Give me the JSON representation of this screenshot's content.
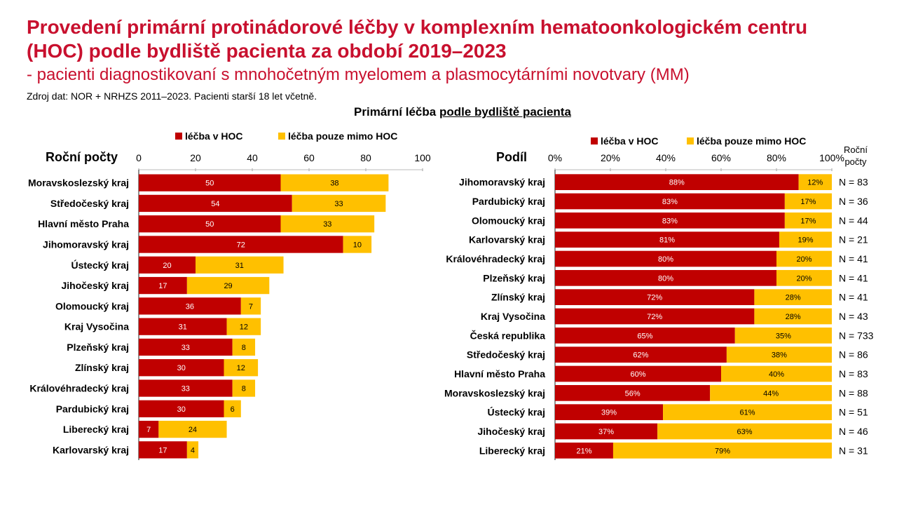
{
  "title_line1": "Provedení primární protinádorové léčby v komplexním hematoonkologickém centru",
  "title_line2": "(HOC) podle bydliště pacienta za období 2019–2023",
  "subtitle": "- pacienti diagnostikovaní s mnohočetným myelomem a plasmocytárními novotvary (MM)",
  "source": "Zdroj dat: NOR + NRHZS 2011–2023. Pacienti starší 18 let včetně.",
  "section_title_plain": "Primární léčba ",
  "section_title_underlined": "podle bydliště pacienta",
  "colors": {
    "hoc": "#c00000",
    "outside": "#ffc000",
    "title": "#c8102e"
  },
  "chart_data": [
    {
      "type": "bar",
      "orientation": "horizontal",
      "stacked": true,
      "title": "Roční počty",
      "xlim": [
        0,
        100
      ],
      "xticks": [
        0,
        20,
        40,
        60,
        80,
        100
      ],
      "legend_position": "top",
      "categories": [
        "Moravskoslezský kraj",
        "Středočeský kraj",
        "Hlavní město Praha",
        "Jihomoravský kraj",
        "Ústecký kraj",
        "Jihočeský kraj",
        "Olomoucký kraj",
        "Kraj Vysočina",
        "Plzeňský kraj",
        "Zlínský kraj",
        "Královéhradecký kraj",
        "Pardubický kraj",
        "Liberecký kraj",
        "Karlovarský kraj"
      ],
      "series": [
        {
          "name": "léčba v HOC",
          "values": [
            50,
            54,
            50,
            72,
            20,
            17,
            36,
            31,
            33,
            30,
            33,
            30,
            7,
            17
          ]
        },
        {
          "name": "léčba pouze mimo HOC",
          "values": [
            38,
            33,
            33,
            10,
            31,
            29,
            7,
            12,
            8,
            12,
            8,
            6,
            24,
            4
          ]
        }
      ]
    },
    {
      "type": "bar",
      "orientation": "horizontal",
      "stacked": true,
      "percent": true,
      "title": "Podíl",
      "xlim": [
        0,
        100
      ],
      "xticks": [
        "0%",
        "20%",
        "40%",
        "60%",
        "80%",
        "100%"
      ],
      "legend_position": "top",
      "n_header": "Roční počty",
      "categories": [
        "Jihomoravský kraj",
        "Pardubický kraj",
        "Olomoucký kraj",
        "Karlovarský kraj",
        "Královéhradecký kraj",
        "Plzeňský kraj",
        "Zlínský kraj",
        "Kraj Vysočina",
        "Česká republika",
        "Středočeský kraj",
        "Hlavní město Praha",
        "Moravskoslezský kraj",
        "Ústecký kraj",
        "Jihočeský kraj",
        "Liberecký kraj"
      ],
      "series": [
        {
          "name": "léčba v HOC",
          "values": [
            88,
            83,
            83,
            81,
            80,
            80,
            72,
            72,
            65,
            62,
            60,
            56,
            39,
            37,
            21
          ]
        },
        {
          "name": "léčba pouze mimo HOC",
          "values": [
            12,
            17,
            17,
            19,
            20,
            20,
            28,
            28,
            35,
            38,
            40,
            44,
            61,
            63,
            79
          ]
        }
      ],
      "n_labels": [
        "N = 83",
        "N = 36",
        "N = 44",
        "N = 21",
        "N = 41",
        "N = 41",
        "N = 41",
        "N = 43",
        "N = 733",
        "N = 86",
        "N = 83",
        "N = 88",
        "N = 51",
        "N = 46",
        "N = 31"
      ]
    }
  ]
}
